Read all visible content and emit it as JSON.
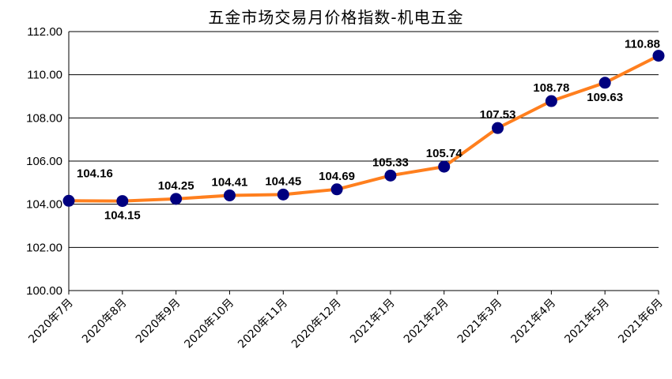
{
  "chart_data": {
    "type": "line",
    "title": "五金市场交易月价格指数-机电五金",
    "categories": [
      "2020年7月",
      "2020年8月",
      "2020年9月",
      "2020年10月",
      "2020年11月",
      "2020年12月",
      "2021年1月",
      "2021年2月",
      "2021年3月",
      "2021年4月",
      "2021年5月",
      "2021年6月"
    ],
    "series": [
      {
        "values": [
          104.16,
          104.15,
          104.25,
          104.41,
          104.45,
          104.69,
          105.33,
          105.74,
          107.53,
          108.78,
          109.63,
          110.88
        ],
        "labels": [
          "104.16",
          "104.15",
          "104.25",
          "104.41",
          "104.45",
          "104.69",
          "105.33",
          "105.74",
          "107.53",
          "108.78",
          "109.63",
          "110.88"
        ]
      }
    ],
    "ylim": [
      100,
      112
    ],
    "yticks": [
      "100.00",
      "102.00",
      "104.00",
      "106.00",
      "108.00",
      "110.00",
      "112.00"
    ],
    "grid": true,
    "legend": "none",
    "colors": {
      "line": "#FF7F1E",
      "marker": "#00007F",
      "grid": "#000000"
    }
  }
}
